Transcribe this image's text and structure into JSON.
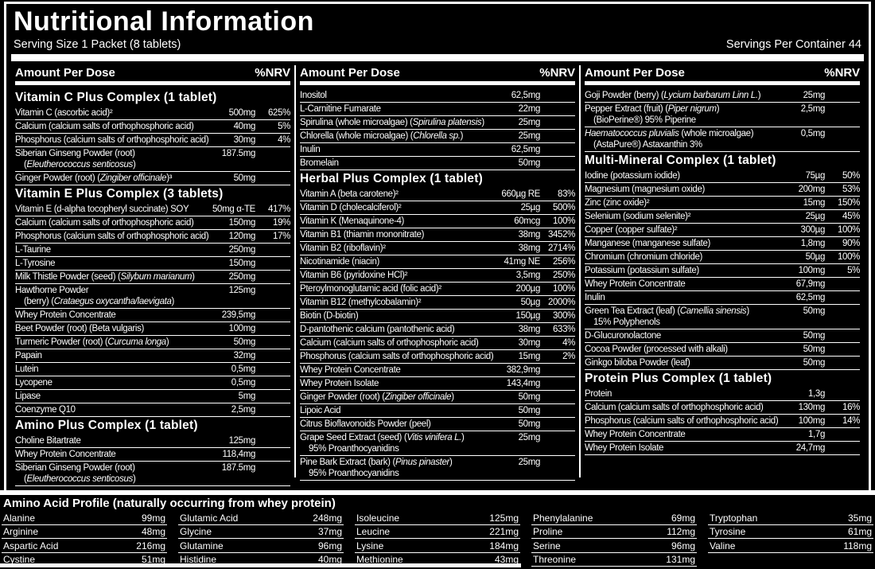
{
  "colors": {
    "background": "#000000",
    "text": "#ffffff"
  },
  "header": {
    "title": "Nutritional Information",
    "serving_size": "Serving Size 1 Packet (8 tablets)",
    "servings_per_container": "Servings Per Container 44"
  },
  "table": {
    "col_header": {
      "amount": "Amount Per Dose",
      "nrv": "%NRV"
    },
    "columns": [
      {
        "blocks": [
          {
            "section": "Vitamin C Plus Complex (1 tablet)"
          },
          {
            "name": "Vitamin C (ascorbic acid)²",
            "amount": "500mg",
            "nrv": "625%"
          },
          {
            "name": "Calcium (calcium salts of orthophosphoric acid)",
            "amount": "40mg",
            "nrv": "5%"
          },
          {
            "name": "Phosphorus (calcium salts of orthophosphoric acid)",
            "amount": "30mg",
            "nrv": "4%"
          },
          {
            "name": "Siberian Ginseng Powder (root)",
            "line2": "(*Eleutherococcus senticosus*)",
            "amount": "187.5mg"
          },
          {
            "name": "Ginger Powder (root) (*Zingiber officinale*)³",
            "amount": "50mg"
          },
          {
            "section": "Vitamin E Plus Complex (3 tablets)"
          },
          {
            "name": "Vitamin E (d-alpha tocopheryl succinate) SOY",
            "amount": "50mg α-TE",
            "nrv": "417%"
          },
          {
            "name": "Calcium (calcium salts of orthophosphoric acid)",
            "amount": "150mg",
            "nrv": "19%"
          },
          {
            "name": "Phosphorus (calcium salts of orthophosphoric acid)",
            "amount": "120mg",
            "nrv": "17%"
          },
          {
            "name": "L-Taurine",
            "amount": "250mg"
          },
          {
            "name": "L-Tyrosine",
            "amount": "150mg"
          },
          {
            "name": "Milk Thistle Powder (seed) (*Silybum marianum*)",
            "amount": "250mg"
          },
          {
            "name": "Hawthorne Powder",
            "line2": "(berry) (*Crataegus oxycantha/laevigata*)",
            "amount": "125mg"
          },
          {
            "name": "Whey Protein Concentrate",
            "amount": "239,5mg"
          },
          {
            "name": "Beet Powder (root) (Beta vulgaris)",
            "amount": "100mg"
          },
          {
            "name": "Turmeric Powder (root) (*Curcuma longa*)",
            "amount": "50mg"
          },
          {
            "name": "Papain",
            "amount": "32mg"
          },
          {
            "name": "Lutein",
            "amount": "0,5mg"
          },
          {
            "name": "Lycopene",
            "amount": "0,5mg"
          },
          {
            "name": "Lipase",
            "amount": "5mg"
          },
          {
            "name": "Coenzyme Q10",
            "amount": "2,5mg"
          },
          {
            "section": "Amino Plus Complex (1 tablet)"
          },
          {
            "name": "Choline Bitartrate",
            "amount": "125mg"
          },
          {
            "name": "Whey Protein Concentrate",
            "amount": "118,4mg"
          },
          {
            "name": "Siberian Ginseng Powder (root)",
            "line2": "(*Eleutherococcus senticosus*)",
            "amount": "187.5mg"
          }
        ]
      },
      {
        "blocks": [
          {
            "name": "Inositol",
            "amount": "62,5mg"
          },
          {
            "name": "L-Carnitine Fumarate",
            "amount": "22mg"
          },
          {
            "name": "Spirulina (whole microalgae) (*Spirulina platensis*)",
            "amount": "25mg"
          },
          {
            "name": "Chlorella (whole microalgae) (*Chlorella sp.*)",
            "amount": "25mg"
          },
          {
            "name": "Inulin",
            "amount": "62,5mg"
          },
          {
            "name": "Bromelain",
            "amount": "50mg"
          },
          {
            "section": "Herbal Plus Complex (1 tablet)"
          },
          {
            "name": "Vitamin A (beta carotene)²",
            "amount": "660µg RE",
            "nrv": "83%"
          },
          {
            "name": "Vitamin D (cholecalciferol)²",
            "amount": "25µg",
            "nrv": "500%"
          },
          {
            "name": "Vitamin K (Menaquinone-4)",
            "amount": "60mcg",
            "nrv": "100%"
          },
          {
            "name": "Vitamin B1 (thiamin mononitrate)",
            "amount": "38mg",
            "nrv": "3452%"
          },
          {
            "name": "Vitamin B2 (riboflavin)²",
            "amount": "38mg",
            "nrv": "2714%"
          },
          {
            "name": "Nicotinamide (niacin)",
            "amount": "41mg NE",
            "nrv": "256%"
          },
          {
            "name": "Vitamin B6 (pyridoxine HCl)²",
            "amount": "3,5mg",
            "nrv": "250%"
          },
          {
            "name": "Pteroylmonoglutamic acid (folic acid)²",
            "amount": "200µg",
            "nrv": "100%"
          },
          {
            "name": "Vitamin B12 (methylcobalamin)²",
            "amount": "50µg",
            "nrv": "2000%"
          },
          {
            "name": "Biotin (D-biotin)",
            "amount": "150µg",
            "nrv": "300%"
          },
          {
            "name": "D-pantothenic calcium (pantothenic acid)",
            "amount": "38mg",
            "nrv": "633%"
          },
          {
            "name": "Calcium (calcium salts of orthophosphoric acid)",
            "amount": "30mg",
            "nrv": "4%"
          },
          {
            "name": "Phosphorus (calcium salts of orthophosphoric acid)",
            "amount": "15mg",
            "nrv": "2%"
          },
          {
            "name": "Whey Protein Concentrate",
            "amount": "382,9mg"
          },
          {
            "name": "Whey Protein Isolate",
            "amount": "143,4mg"
          },
          {
            "name": "Ginger Powder (root) (*Zingiber officinale*)",
            "amount": "50mg"
          },
          {
            "name": "Lipoic Acid",
            "amount": "50mg"
          },
          {
            "name": "Citrus Bioflavonoids Powder (peel)",
            "amount": "50mg"
          },
          {
            "name": "Grape Seed Extract (seed) (*Vitis vinifera L.*)",
            "line2": "95% Proanthocyanidins",
            "amount": "25mg"
          },
          {
            "name": "Pine Bark Extract (bark) (*Pinus pinaster*)",
            "line2": "95% Proanthocyanidins",
            "amount": "25mg"
          }
        ]
      },
      {
        "blocks": [
          {
            "name": "Goji Powder (berry) (*Lycium barbarum Linn L.*)",
            "amount": "25mg"
          },
          {
            "name": "Pepper Extract (fruit) (*Piper nigrum*)",
            "line2": "(BioPerine®) 95% Piperine",
            "amount": "2,5mg"
          },
          {
            "name": "*Haematococcus pluvialis* (whole microalgae)",
            "line2": "(AstaPure®) Astaxanthin 3%",
            "amount": "0,5mg"
          },
          {
            "section": "Multi-Mineral Complex (1 tablet)"
          },
          {
            "name": "Iodine (potassium iodide)",
            "amount": "75µg",
            "nrv": "50%"
          },
          {
            "name": "Magnesium (magnesium oxide)",
            "amount": "200mg",
            "nrv": "53%"
          },
          {
            "name": "Zinc (zinc oxide)²",
            "amount": "15mg",
            "nrv": "150%"
          },
          {
            "name": "Selenium (sodium selenite)²",
            "amount": "25µg",
            "nrv": "45%"
          },
          {
            "name": "Copper (copper sulfate)²",
            "amount": "300µg",
            "nrv": "100%"
          },
          {
            "name": "Manganese (manganese sulfate)",
            "amount": "1,8mg",
            "nrv": "90%"
          },
          {
            "name": "Chromium (chromium chloride)",
            "amount": "50µg",
            "nrv": "100%"
          },
          {
            "name": "Potassium (potassium sulfate)",
            "amount": "100mg",
            "nrv": "5%"
          },
          {
            "name": "Whey Protein Concentrate",
            "amount": "67,9mg"
          },
          {
            "name": "Inulin",
            "amount": "62,5mg"
          },
          {
            "name": "Green Tea Extract (leaf) (*Camellia sinensis*)",
            "line2": "15% Polyphenols",
            "amount": "50mg"
          },
          {
            "name": "D-Glucuronolactone",
            "amount": "50mg"
          },
          {
            "name": "Cocoa Powder (processed with alkali)",
            "amount": "50mg"
          },
          {
            "name": "Ginkgo biloba Powder (leaf)",
            "amount": "50mg"
          },
          {
            "section": "Protein Plus Complex (1 tablet)"
          },
          {
            "name": "Protein",
            "amount": "1,3g"
          },
          {
            "name": "Calcium (calcium salts of orthophosphoric acid)",
            "amount": "130mg",
            "nrv": "16%"
          },
          {
            "name": "Phosphorus (calcium salts of orthophosphoric acid)",
            "amount": "100mg",
            "nrv": "14%"
          },
          {
            "name": "Whey Protein Concentrate",
            "amount": "1,7g"
          },
          {
            "name": "Whey Protein Isolate",
            "amount": "24,7mg"
          }
        ]
      }
    ]
  },
  "amino": {
    "title": "Amino Acid Profile (naturally occurring from whey protein)",
    "columns": [
      [
        {
          "name": "Alanine",
          "value": "99mg"
        },
        {
          "name": "Arginine",
          "value": "48mg"
        },
        {
          "name": "Aspartic Acid",
          "value": "216mg"
        },
        {
          "name": "Cystine",
          "value": "51mg"
        }
      ],
      [
        {
          "name": "Glutamic Acid",
          "value": "248mg"
        },
        {
          "name": "Glycine",
          "value": "37mg"
        },
        {
          "name": "Glutamine",
          "value": "96mg"
        },
        {
          "name": "Histidine",
          "value": "40mg"
        }
      ],
      [
        {
          "name": "Isoleucine",
          "value": "125mg"
        },
        {
          "name": "Leucine",
          "value": "221mg"
        },
        {
          "name": "Lysine",
          "value": "184mg"
        },
        {
          "name": "Methionine",
          "value": "43mg"
        }
      ],
      [
        {
          "name": "Phenylalanine",
          "value": "69mg"
        },
        {
          "name": "Proline",
          "value": "112mg"
        },
        {
          "name": "Serine",
          "value": "96mg"
        },
        {
          "name": "Threonine",
          "value": "131mg"
        }
      ],
      [
        {
          "name": "Tryptophan",
          "value": "35mg"
        },
        {
          "name": "Tyrosine",
          "value": "61mg"
        },
        {
          "name": "Valine",
          "value": "118mg"
        }
      ]
    ]
  }
}
